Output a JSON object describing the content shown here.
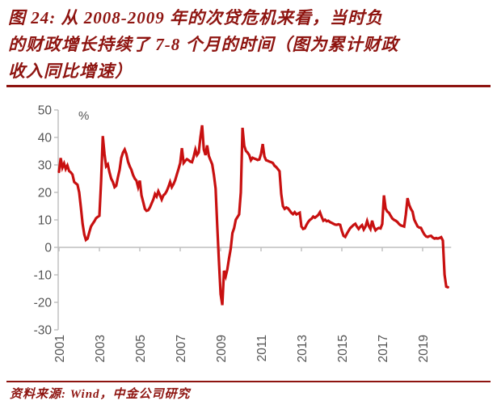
{
  "title": {
    "lines": [
      "图 24: 从 2008-2009 年的次贷危机来看，当时负",
      "的财政增长持续了 7-8 个月的时间（图为累计财政",
      "收入同比增速）"
    ],
    "full": "图 24: 从 2008-2009 年的次贷危机来看，当时负的财政增长持续了 7-8 个月的时间（图为累计财政收入同比增速）"
  },
  "source": {
    "label": "资料来源: Wind，中金公司研究"
  },
  "colors": {
    "accent_dark_red": "#8e1410",
    "line_red": "#c81010",
    "axis_gray": "#bdbdbd",
    "tick_text": "#555555"
  },
  "chart_data": {
    "type": "line",
    "title": "累计财政收入同比增速",
    "unit_label": "%",
    "start": "2001-01",
    "frequency": "monthly",
    "ylim": [
      -30,
      50
    ],
    "y_ticks": [
      50,
      40,
      30,
      20,
      10,
      0,
      -10,
      -20,
      -30
    ],
    "x_ticks": [
      2001,
      2003,
      2005,
      2007,
      2009,
      2011,
      2013,
      2015,
      2017,
      2019
    ],
    "grid": false,
    "legend_position": "none",
    "line_color": "#c81010",
    "values": [
      27.5,
      32.5,
      29.0,
      30.5,
      28.5,
      29.8,
      27.8,
      27.3,
      26.5,
      23.8,
      23.3,
      22.8,
      20.0,
      14.5,
      8.6,
      4.7,
      2.7,
      3.2,
      5.5,
      7.6,
      8.6,
      9.5,
      10.6,
      11.1,
      11.5,
      24.0,
      40.5,
      34.0,
      29.5,
      30.2,
      27.3,
      25.0,
      23.8,
      21.9,
      22.4,
      25.5,
      28.2,
      32.6,
      34.5,
      35.6,
      34.0,
      31.2,
      29.5,
      28.2,
      26.3,
      25.0,
      24.3,
      21.9,
      24.3,
      18.9,
      16.5,
      14.0,
      13.3,
      13.5,
      14.5,
      16.0,
      17.4,
      19.4,
      18.5,
      20.4,
      19.0,
      17.4,
      18.9,
      19.5,
      20.5,
      22.0,
      23.8,
      21.9,
      23.0,
      24.5,
      26.5,
      28.5,
      30.7,
      36.1,
      30.7,
      31.5,
      32.1,
      31.7,
      31.2,
      31.0,
      33.0,
      35.6,
      33.6,
      34.5,
      40.0,
      44.4,
      35.6,
      33.6,
      37.1,
      33.3,
      31.7,
      30.2,
      26.3,
      21.4,
      8.0,
      -5.0,
      -17.0,
      -21.0,
      -8.5,
      -10.5,
      -8.0,
      -4.0,
      -0.5,
      5.2,
      7.0,
      10.1,
      11.0,
      12.0,
      20.0,
      43.5,
      37.0,
      35.1,
      34.5,
      33.6,
      31.7,
      32.6,
      32.3,
      32.1,
      31.8,
      32.0,
      34.0,
      37.6,
      33.1,
      31.7,
      31.5,
      31.2,
      31.0,
      30.7,
      29.7,
      29.2,
      28.5,
      27.7,
      19.4,
      15.0,
      14.0,
      14.5,
      14.2,
      13.4,
      12.6,
      12.1,
      12.8,
      12.0,
      12.3,
      12.6,
      7.6,
      6.7,
      6.9,
      8.2,
      9.2,
      10.0,
      10.4,
      11.2,
      10.8,
      11.3,
      11.8,
      12.8,
      11.1,
      9.7,
      10.1,
      9.5,
      9.7,
      9.2,
      8.9,
      8.6,
      8.3,
      8.2,
      8.4,
      8.2,
      6.0,
      4.2,
      3.8,
      5.0,
      6.0,
      7.0,
      7.6,
      8.2,
      8.6,
      7.5,
      6.7,
      7.5,
      8.1,
      6.5,
      7.5,
      9.6,
      7.8,
      6.7,
      9.7,
      7.5,
      6.2,
      6.8,
      7.1,
      6.9,
      8.5,
      18.9,
      14.1,
      13.0,
      12.6,
      11.5,
      10.5,
      10.0,
      9.7,
      9.2,
      8.5,
      8.0,
      7.8,
      7.6,
      12.0,
      17.9,
      15.5,
      14.0,
      13.0,
      10.1,
      8.8,
      7.6,
      7.2,
      7.1,
      5.8,
      4.7,
      4.0,
      3.8,
      4.1,
      4.2,
      3.6,
      3.2,
      3.4,
      3.2,
      3.4,
      3.7,
      2.5,
      -9.9,
      -14.3,
      -14.5
    ]
  }
}
